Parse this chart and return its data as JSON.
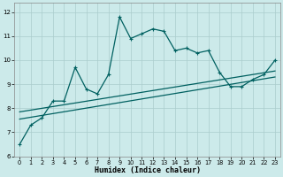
{
  "xlabel": "Humidex (Indice chaleur)",
  "bg_color": "#cceaea",
  "line_color": "#006060",
  "grid_color": "#aacccc",
  "xlim": [
    -0.5,
    23.5
  ],
  "ylim": [
    6.0,
    12.4
  ],
  "xticks": [
    0,
    1,
    2,
    3,
    4,
    5,
    6,
    7,
    8,
    9,
    10,
    11,
    12,
    13,
    14,
    15,
    16,
    17,
    18,
    19,
    20,
    21,
    22,
    23
  ],
  "yticks": [
    6,
    7,
    8,
    9,
    10,
    11,
    12
  ],
  "curve1_x": [
    0,
    1,
    2,
    3,
    4,
    5,
    6,
    7,
    8,
    9,
    10,
    11,
    12,
    13,
    14,
    15,
    16,
    17,
    18,
    19,
    20,
    21,
    22,
    23
  ],
  "curve1_y": [
    6.5,
    7.3,
    7.6,
    8.3,
    8.3,
    9.7,
    8.8,
    8.6,
    9.4,
    11.8,
    10.9,
    11.1,
    11.3,
    11.2,
    10.4,
    10.5,
    10.3,
    10.4,
    9.5,
    8.9,
    8.9,
    9.2,
    9.4,
    10.0
  ],
  "line1_x": [
    0,
    23
  ],
  "line1_y": [
    7.55,
    9.3
  ],
  "line2_x": [
    0,
    23
  ],
  "line2_y": [
    7.85,
    9.55
  ]
}
